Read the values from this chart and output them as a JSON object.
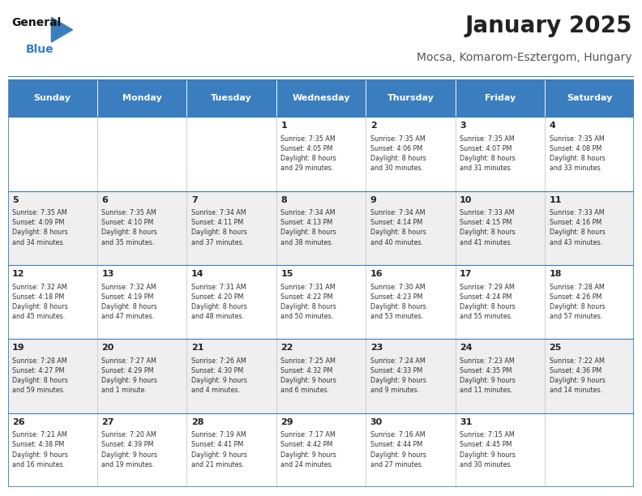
{
  "title": "January 2025",
  "subtitle": "Mocsa, Komarom-Esztergom, Hungary",
  "header_color": "#3a7ebf",
  "header_text_color": "#ffffff",
  "bg_color": "#ffffff",
  "cell_bg_even": "#efefef",
  "cell_bg_odd": "#ffffff",
  "text_color": "#333333",
  "day_headers": [
    "Sunday",
    "Monday",
    "Tuesday",
    "Wednesday",
    "Thursday",
    "Friday",
    "Saturday"
  ],
  "weeks": [
    [
      {
        "day": "",
        "info": ""
      },
      {
        "day": "",
        "info": ""
      },
      {
        "day": "",
        "info": ""
      },
      {
        "day": "1",
        "info": "Sunrise: 7:35 AM\nSunset: 4:05 PM\nDaylight: 8 hours\nand 29 minutes."
      },
      {
        "day": "2",
        "info": "Sunrise: 7:35 AM\nSunset: 4:06 PM\nDaylight: 8 hours\nand 30 minutes."
      },
      {
        "day": "3",
        "info": "Sunrise: 7:35 AM\nSunset: 4:07 PM\nDaylight: 8 hours\nand 31 minutes."
      },
      {
        "day": "4",
        "info": "Sunrise: 7:35 AM\nSunset: 4:08 PM\nDaylight: 8 hours\nand 33 minutes."
      }
    ],
    [
      {
        "day": "5",
        "info": "Sunrise: 7:35 AM\nSunset: 4:09 PM\nDaylight: 8 hours\nand 34 minutes."
      },
      {
        "day": "6",
        "info": "Sunrise: 7:35 AM\nSunset: 4:10 PM\nDaylight: 8 hours\nand 35 minutes."
      },
      {
        "day": "7",
        "info": "Sunrise: 7:34 AM\nSunset: 4:11 PM\nDaylight: 8 hours\nand 37 minutes."
      },
      {
        "day": "8",
        "info": "Sunrise: 7:34 AM\nSunset: 4:13 PM\nDaylight: 8 hours\nand 38 minutes."
      },
      {
        "day": "9",
        "info": "Sunrise: 7:34 AM\nSunset: 4:14 PM\nDaylight: 8 hours\nand 40 minutes."
      },
      {
        "day": "10",
        "info": "Sunrise: 7:33 AM\nSunset: 4:15 PM\nDaylight: 8 hours\nand 41 minutes."
      },
      {
        "day": "11",
        "info": "Sunrise: 7:33 AM\nSunset: 4:16 PM\nDaylight: 8 hours\nand 43 minutes."
      }
    ],
    [
      {
        "day": "12",
        "info": "Sunrise: 7:32 AM\nSunset: 4:18 PM\nDaylight: 8 hours\nand 45 minutes."
      },
      {
        "day": "13",
        "info": "Sunrise: 7:32 AM\nSunset: 4:19 PM\nDaylight: 8 hours\nand 47 minutes."
      },
      {
        "day": "14",
        "info": "Sunrise: 7:31 AM\nSunset: 4:20 PM\nDaylight: 8 hours\nand 48 minutes."
      },
      {
        "day": "15",
        "info": "Sunrise: 7:31 AM\nSunset: 4:22 PM\nDaylight: 8 hours\nand 50 minutes."
      },
      {
        "day": "16",
        "info": "Sunrise: 7:30 AM\nSunset: 4:23 PM\nDaylight: 8 hours\nand 53 minutes."
      },
      {
        "day": "17",
        "info": "Sunrise: 7:29 AM\nSunset: 4:24 PM\nDaylight: 8 hours\nand 55 minutes."
      },
      {
        "day": "18",
        "info": "Sunrise: 7:28 AM\nSunset: 4:26 PM\nDaylight: 8 hours\nand 57 minutes."
      }
    ],
    [
      {
        "day": "19",
        "info": "Sunrise: 7:28 AM\nSunset: 4:27 PM\nDaylight: 8 hours\nand 59 minutes."
      },
      {
        "day": "20",
        "info": "Sunrise: 7:27 AM\nSunset: 4:29 PM\nDaylight: 9 hours\nand 1 minute."
      },
      {
        "day": "21",
        "info": "Sunrise: 7:26 AM\nSunset: 4:30 PM\nDaylight: 9 hours\nand 4 minutes."
      },
      {
        "day": "22",
        "info": "Sunrise: 7:25 AM\nSunset: 4:32 PM\nDaylight: 9 hours\nand 6 minutes."
      },
      {
        "day": "23",
        "info": "Sunrise: 7:24 AM\nSunset: 4:33 PM\nDaylight: 9 hours\nand 9 minutes."
      },
      {
        "day": "24",
        "info": "Sunrise: 7:23 AM\nSunset: 4:35 PM\nDaylight: 9 hours\nand 11 minutes."
      },
      {
        "day": "25",
        "info": "Sunrise: 7:22 AM\nSunset: 4:36 PM\nDaylight: 9 hours\nand 14 minutes."
      }
    ],
    [
      {
        "day": "26",
        "info": "Sunrise: 7:21 AM\nSunset: 4:38 PM\nDaylight: 9 hours\nand 16 minutes."
      },
      {
        "day": "27",
        "info": "Sunrise: 7:20 AM\nSunset: 4:39 PM\nDaylight: 9 hours\nand 19 minutes."
      },
      {
        "day": "28",
        "info": "Sunrise: 7:19 AM\nSunset: 4:41 PM\nDaylight: 9 hours\nand 21 minutes."
      },
      {
        "day": "29",
        "info": "Sunrise: 7:17 AM\nSunset: 4:42 PM\nDaylight: 9 hours\nand 24 minutes."
      },
      {
        "day": "30",
        "info": "Sunrise: 7:16 AM\nSunset: 4:44 PM\nDaylight: 9 hours\nand 27 minutes."
      },
      {
        "day": "31",
        "info": "Sunrise: 7:15 AM\nSunset: 4:45 PM\nDaylight: 9 hours\nand 30 minutes."
      },
      {
        "day": "",
        "info": ""
      }
    ]
  ],
  "logo_general_color": "#111111",
  "logo_blue_color": "#3a7ebf",
  "title_color": "#222222",
  "subtitle_color": "#555555",
  "divider_line_color": "#3a7ebf",
  "cell_border_color": "#bbbbbb"
}
